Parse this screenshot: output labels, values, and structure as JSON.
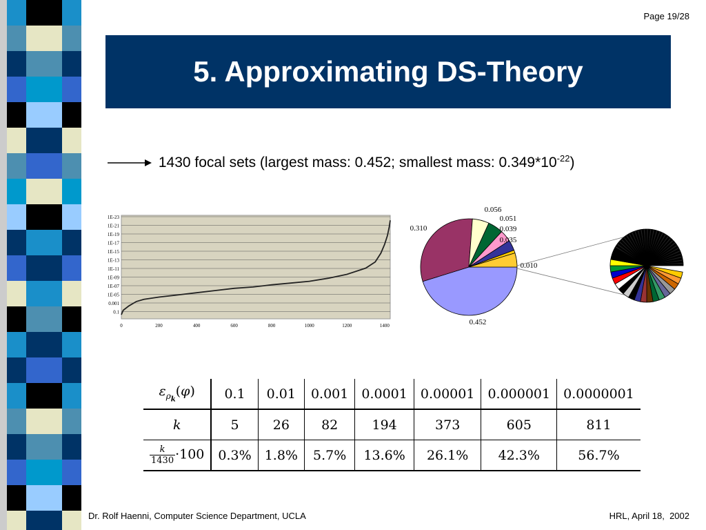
{
  "page_number": "Page 19/28",
  "title": "5. Approximating DS-Theory",
  "bullet": {
    "text": "1430 focal sets (largest mass: 0.452; smallest mass: 0.349*10",
    "exponent": "-22",
    "closing": ")"
  },
  "table": {
    "row_headers": {
      "epsilon": "ε",
      "k": "k",
      "frac_num": "k",
      "frac_den": "1430",
      "frac_suffix": "·100"
    },
    "thresholds": [
      "0.1",
      "0.01",
      "0.001",
      "0.0001",
      "0.00001",
      "0.000001",
      "0.0000001"
    ],
    "k_values": [
      "5",
      "26",
      "82",
      "194",
      "373",
      "605",
      "811"
    ],
    "percentages": [
      "0.3%",
      "1.8%",
      "5.7%",
      "13.6%",
      "26.1%",
      "42.3%",
      "56.7%"
    ]
  },
  "footer": {
    "left": "Dr. Rolf Haenni, Computer Science Department, UCLA",
    "right": "HRL, April 18,  2002"
  },
  "colors": {
    "title_bg": "#003366",
    "plot_bg": "#d8d4c0"
  },
  "chart_data": [
    {
      "type": "line",
      "y_scale": "log",
      "y_tick_labels": [
        "1E-23",
        "1E-21",
        "1E-19",
        "1E-17",
        "1E-15",
        "1E-13",
        "1E-11",
        "1E-09",
        "1E-07",
        "1E-05",
        "0.001",
        "0.1"
      ],
      "x_tick_labels": [
        "0",
        "200",
        "400",
        "600",
        "800",
        "1000",
        "1200",
        "1400"
      ],
      "xlim": [
        0,
        1430
      ],
      "grid": true,
      "series": [
        {
          "x": [
            0,
            10,
            40,
            80,
            120,
            200,
            300,
            400,
            500,
            600,
            700,
            800,
            900,
            1000,
            1100,
            1200,
            1300,
            1350,
            1380,
            1400,
            1415,
            1425,
            1430
          ],
          "y_exp": [
            -1,
            -2,
            -3,
            -4,
            -4.5,
            -5,
            -5.5,
            -6,
            -6.5,
            -7,
            -7.3,
            -7.8,
            -8.2,
            -8.6,
            -9.3,
            -10.2,
            -11.6,
            -13,
            -15,
            -17,
            -19,
            -21,
            -22.5
          ]
        }
      ]
    },
    {
      "type": "pie",
      "labels": [
        "0.452",
        "0.310",
        "0.056",
        "0.051",
        "0.039",
        "0.035",
        "0.010"
      ],
      "values": [
        0.452,
        0.31,
        0.056,
        0.051,
        0.039,
        0.035,
        0.01
      ],
      "colors": [
        "#9999ff",
        "#993366",
        "#ffffcc",
        "#006633",
        "#ff99cc",
        "#333399",
        "#ffcc00"
      ]
    }
  ]
}
